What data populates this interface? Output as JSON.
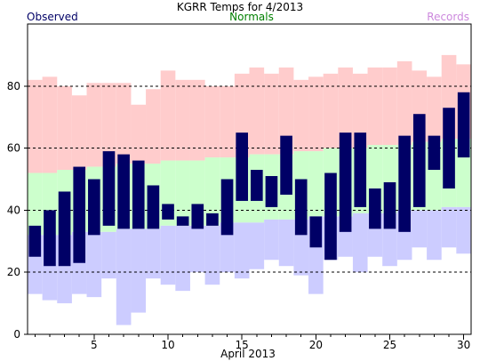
{
  "chart_data": {
    "type": "bar",
    "title": "KGRR Temps for 4/2013",
    "xlabel": "April 2013",
    "ylabel": "",
    "legend": [
      {
        "label": "Observed",
        "color": "#000066",
        "position": "top-left"
      },
      {
        "label": "Normals",
        "color": "#008000",
        "position": "top-center"
      },
      {
        "label": "Records",
        "color": "#cc88dd",
        "position": "top-right"
      }
    ],
    "colors": {
      "observed_bar": "#000066",
      "record_high_band": "#ffcccc",
      "normal_band": "#ccffcc",
      "record_low_band": "#ccccff"
    },
    "xlim": [
      0.5,
      30.5
    ],
    "ylim": [
      0,
      100
    ],
    "x_ticks": [
      5,
      10,
      15,
      20,
      25,
      30
    ],
    "y_ticks": [
      0,
      20,
      40,
      60,
      80
    ],
    "grid_y_dashed": [
      20,
      40,
      60,
      80
    ],
    "days": [
      1,
      2,
      3,
      4,
      5,
      6,
      7,
      8,
      9,
      10,
      11,
      12,
      13,
      14,
      15,
      16,
      17,
      18,
      19,
      20,
      21,
      22,
      23,
      24,
      25,
      26,
      27,
      28,
      29,
      30
    ],
    "observed_high": [
      35,
      40,
      46,
      54,
      50,
      59,
      58,
      56,
      48,
      42,
      38,
      42,
      39,
      50,
      65,
      53,
      51,
      64,
      50,
      38,
      52,
      65,
      65,
      47,
      49,
      64,
      71,
      64,
      73,
      78
    ],
    "observed_low": [
      25,
      22,
      22,
      23,
      32,
      35,
      34,
      34,
      34,
      37,
      35,
      34,
      35,
      32,
      43,
      43,
      41,
      45,
      32,
      28,
      24,
      33,
      41,
      34,
      34,
      33,
      41,
      53,
      47,
      57
    ],
    "normal_high": [
      52,
      52,
      53,
      53,
      54,
      54,
      55,
      55,
      55,
      56,
      56,
      56,
      57,
      57,
      57,
      58,
      58,
      58,
      59,
      59,
      60,
      60,
      60,
      61,
      61,
      61,
      62,
      62,
      63,
      63
    ],
    "normal_low": [
      32,
      32,
      32,
      33,
      33,
      33,
      34,
      34,
      34,
      35,
      35,
      35,
      35,
      36,
      36,
      36,
      37,
      37,
      37,
      38,
      38,
      38,
      39,
      39,
      39,
      40,
      40,
      40,
      41,
      41
    ],
    "record_high": [
      82,
      83,
      80,
      77,
      81,
      81,
      81,
      74,
      79,
      85,
      82,
      82,
      80,
      80,
      84,
      86,
      84,
      86,
      82,
      83,
      84,
      86,
      84,
      86,
      86,
      88,
      85,
      83,
      90,
      87
    ],
    "record_low": [
      13,
      11,
      10,
      13,
      12,
      18,
      3,
      7,
      18,
      16,
      14,
      20,
      16,
      20,
      18,
      21,
      24,
      22,
      19,
      13,
      24,
      25,
      20,
      25,
      22,
      24,
      28,
      24,
      28,
      26
    ]
  }
}
